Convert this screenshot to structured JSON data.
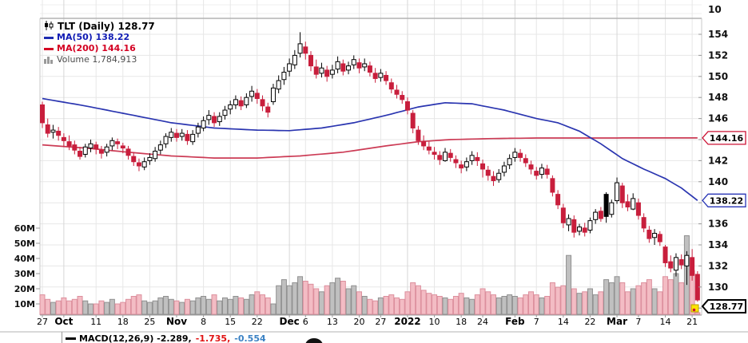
{
  "legend": {
    "symbol_title": "TLT (Daily) 128.77",
    "ma50_label": "MA(50) 138.22",
    "ma200_label": "MA(200) 144.16",
    "volume_label": "Volume 1,784,913"
  },
  "macd": {
    "label": "MACD(12,26,9) -2.289,",
    "value2": "-1.735,",
    "value3": "-0.554"
  },
  "colors": {
    "candle_down": "#c81e3c",
    "candle_up_border": "#000000",
    "ma50": "#2a35b0",
    "ma200": "#cc3b55",
    "vol_down_fill": "#f3bcc4",
    "vol_down_stroke": "#dc8f9d",
    "vol_up_fill": "#c0c0c0",
    "vol_up_stroke": "#909090",
    "grid": "#e7e7e7",
    "grid_month": "#d6d6d6",
    "divider": "#b3b3b3",
    "axis_text": "#111111",
    "callout_ma200": "#cc1133",
    "callout_ma50": "#2734b5",
    "callout_last": "#000000",
    "marker_fill": "#ffe400",
    "marker_stroke": "#b8a000",
    "marker_dot": "#cc1133"
  },
  "axes": {
    "top_label": "10",
    "price_tick_labels": [
      154,
      152,
      150,
      148,
      146,
      142,
      140,
      136,
      134,
      132,
      130
    ],
    "price_gridlines": [
      154,
      152,
      150,
      148,
      146,
      144,
      142,
      140,
      138,
      136,
      134,
      132,
      130,
      128
    ],
    "volume_ticks": [
      {
        "label": "60M",
        "v": 60
      },
      {
        "label": "50M",
        "v": 50
      },
      {
        "label": "40M",
        "v": 40
      },
      {
        "label": "30M",
        "v": 30
      },
      {
        "label": "20M",
        "v": 20
      },
      {
        "label": "10M",
        "v": 10
      }
    ]
  },
  "chart_data": {
    "type": "candlestick",
    "symbol": "TLT",
    "timeframe": "Daily",
    "last_price": 128.77,
    "ma50_value": 138.22,
    "ma200_value": 144.16,
    "volume_shown": "1,784,913",
    "macd_values": [
      -2.289,
      -1.735,
      -0.554
    ],
    "ylim": [
      128,
      155.5
    ],
    "volume_ylim_millions": [
      0,
      60
    ],
    "x_ticks": [
      {
        "i": 0,
        "label": "27"
      },
      {
        "i": 4,
        "label": "Oct",
        "bold": true
      },
      {
        "i": 10,
        "label": "11"
      },
      {
        "i": 15,
        "label": "18"
      },
      {
        "i": 20,
        "label": "25"
      },
      {
        "i": 25,
        "label": "Nov",
        "bold": true
      },
      {
        "i": 30,
        "label": "8"
      },
      {
        "i": 35,
        "label": "15"
      },
      {
        "i": 40,
        "label": "22"
      },
      {
        "i": 46,
        "label": "Dec",
        "bold": true
      },
      {
        "i": 49,
        "label": "6"
      },
      {
        "i": 54,
        "label": "13"
      },
      {
        "i": 59,
        "label": "20"
      },
      {
        "i": 63,
        "label": "27"
      },
      {
        "i": 68,
        "label": "2022",
        "bold": true
      },
      {
        "i": 73,
        "label": "10"
      },
      {
        "i": 78,
        "label": "18"
      },
      {
        "i": 82,
        "label": "24"
      },
      {
        "i": 88,
        "label": "Feb",
        "bold": true
      },
      {
        "i": 92,
        "label": "7"
      },
      {
        "i": 97,
        "label": "14"
      },
      {
        "i": 102,
        "label": "22"
      },
      {
        "i": 107,
        "label": "Mar",
        "bold": true
      },
      {
        "i": 111,
        "label": "7"
      },
      {
        "i": 116,
        "label": "14"
      },
      {
        "i": 121,
        "label": "21"
      }
    ],
    "callouts": [
      {
        "label": "144.16",
        "price": 144.16,
        "stroke": "#cc1133",
        "bold": false,
        "dy": 0
      },
      {
        "label": "138.22",
        "price": 138.22,
        "stroke": "#2734b5",
        "bold": false,
        "dy": 0
      },
      {
        "label": "128.77",
        "price": 128.77,
        "stroke": "#000000",
        "bold": true,
        "dy": 8
      }
    ],
    "ma50_keypoints": [
      [
        0,
        147.9
      ],
      [
        8,
        147.2
      ],
      [
        16,
        146.4
      ],
      [
        24,
        145.6
      ],
      [
        32,
        145.1
      ],
      [
        40,
        144.9
      ],
      [
        46,
        144.85
      ],
      [
        52,
        145.1
      ],
      [
        58,
        145.6
      ],
      [
        64,
        146.3
      ],
      [
        70,
        147.1
      ],
      [
        75,
        147.5
      ],
      [
        80,
        147.4
      ],
      [
        86,
        146.8
      ],
      [
        92,
        146.0
      ],
      [
        96,
        145.6
      ],
      [
        100,
        144.8
      ],
      [
        104,
        143.6
      ],
      [
        108,
        142.2
      ],
      [
        112,
        141.2
      ],
      [
        116,
        140.3
      ],
      [
        119,
        139.4
      ],
      [
        122,
        138.22
      ]
    ],
    "ma200_keypoints": [
      [
        0,
        143.5
      ],
      [
        8,
        143.2
      ],
      [
        16,
        142.8
      ],
      [
        24,
        142.45
      ],
      [
        32,
        142.25
      ],
      [
        40,
        142.25
      ],
      [
        48,
        142.45
      ],
      [
        56,
        142.8
      ],
      [
        64,
        143.4
      ],
      [
        70,
        143.8
      ],
      [
        76,
        144.0
      ],
      [
        84,
        144.1
      ],
      [
        92,
        144.15
      ],
      [
        122,
        144.16
      ]
    ],
    "candles_format": [
      "open",
      "high",
      "low",
      "close",
      "volume_millions"
    ],
    "candles": [
      [
        147.3,
        147.6,
        145.1,
        145.6,
        16
      ],
      [
        145.4,
        146.0,
        144.2,
        144.6,
        13
      ],
      [
        144.7,
        145.4,
        144.1,
        144.9,
        11
      ],
      [
        144.8,
        145.2,
        143.9,
        144.4,
        12
      ],
      [
        144.2,
        144.6,
        143.3,
        143.9,
        14
      ],
      [
        143.8,
        144.4,
        143.0,
        143.4,
        12
      ],
      [
        143.5,
        143.9,
        142.6,
        143.0,
        13
      ],
      [
        142.9,
        143.3,
        142.1,
        142.4,
        15
      ],
      [
        142.6,
        143.6,
        142.3,
        143.3,
        12
      ],
      [
        143.2,
        144.0,
        142.8,
        143.6,
        10
      ],
      [
        143.5,
        143.8,
        142.6,
        143.1,
        10
      ],
      [
        143.0,
        143.4,
        142.2,
        142.7,
        12
      ],
      [
        142.8,
        143.6,
        142.4,
        143.3,
        11
      ],
      [
        143.4,
        144.2,
        143.0,
        143.9,
        13
      ],
      [
        143.8,
        144.1,
        143.1,
        143.6,
        10
      ],
      [
        143.4,
        143.7,
        142.7,
        143.2,
        11
      ],
      [
        143.1,
        143.4,
        142.1,
        142.5,
        13
      ],
      [
        142.4,
        142.8,
        141.5,
        141.9,
        15
      ],
      [
        141.8,
        142.2,
        141.0,
        141.5,
        16
      ],
      [
        141.4,
        142.3,
        141.1,
        141.9,
        12
      ],
      [
        142.0,
        142.7,
        141.6,
        142.3,
        11
      ],
      [
        142.2,
        143.3,
        141.9,
        142.9,
        12
      ],
      [
        143.0,
        143.9,
        142.6,
        143.5,
        14
      ],
      [
        143.6,
        144.6,
        143.2,
        144.3,
        15
      ],
      [
        144.2,
        145.1,
        143.8,
        144.7,
        13
      ],
      [
        144.6,
        145.0,
        143.8,
        144.2,
        12
      ],
      [
        144.3,
        145.0,
        143.9,
        144.6,
        11
      ],
      [
        144.5,
        144.9,
        143.5,
        143.9,
        13
      ],
      [
        143.8,
        144.9,
        143.5,
        144.5,
        12
      ],
      [
        144.6,
        145.6,
        144.2,
        145.2,
        14
      ],
      [
        145.1,
        146.2,
        144.8,
        145.8,
        15
      ],
      [
        145.9,
        146.8,
        145.4,
        146.3,
        13
      ],
      [
        146.2,
        146.6,
        145.2,
        145.6,
        16
      ],
      [
        145.7,
        146.6,
        145.3,
        146.2,
        12
      ],
      [
        146.3,
        147.2,
        145.9,
        146.8,
        14
      ],
      [
        146.9,
        147.7,
        146.4,
        147.3,
        13
      ],
      [
        147.3,
        148.2,
        146.9,
        147.8,
        15
      ],
      [
        147.7,
        148.1,
        146.8,
        147.2,
        14
      ],
      [
        147.3,
        148.4,
        147.0,
        148.0,
        13
      ],
      [
        148.1,
        149.1,
        147.6,
        148.6,
        16
      ],
      [
        148.4,
        148.8,
        147.4,
        147.9,
        18
      ],
      [
        147.8,
        148.2,
        146.7,
        147.2,
        16
      ],
      [
        147.1,
        147.5,
        146.1,
        146.6,
        14
      ],
      [
        147.6,
        149.3,
        147.3,
        148.9,
        10
      ],
      [
        148.8,
        150.1,
        148.4,
        149.6,
        22
      ],
      [
        149.7,
        150.9,
        149.2,
        150.4,
        26
      ],
      [
        150.5,
        151.7,
        150.0,
        151.2,
        22
      ],
      [
        151.1,
        152.5,
        150.7,
        152.0,
        24
      ],
      [
        152.2,
        154.2,
        151.8,
        153.1,
        28
      ],
      [
        152.8,
        153.3,
        151.6,
        152.2,
        25
      ],
      [
        152.0,
        152.4,
        150.5,
        151.0,
        23
      ],
      [
        150.9,
        151.6,
        149.8,
        150.2,
        20
      ],
      [
        150.3,
        151.3,
        149.9,
        150.8,
        18
      ],
      [
        150.6,
        151.0,
        149.5,
        150.0,
        22
      ],
      [
        150.2,
        151.1,
        149.8,
        150.6,
        24
      ],
      [
        150.7,
        151.9,
        150.3,
        151.4,
        27
      ],
      [
        151.2,
        151.6,
        150.1,
        150.5,
        25
      ],
      [
        150.6,
        151.4,
        150.2,
        151.0,
        20
      ],
      [
        151.1,
        152.0,
        150.7,
        151.6,
        22
      ],
      [
        151.3,
        151.7,
        150.3,
        150.8,
        18
      ],
      [
        150.9,
        151.7,
        150.5,
        151.2,
        15
      ],
      [
        151.0,
        151.4,
        150.0,
        150.4,
        13
      ],
      [
        150.3,
        150.8,
        149.4,
        149.8,
        12
      ],
      [
        149.9,
        150.7,
        149.5,
        150.3,
        14
      ],
      [
        150.1,
        150.5,
        149.2,
        149.6,
        15
      ],
      [
        149.4,
        149.8,
        148.4,
        148.8,
        16
      ],
      [
        148.7,
        149.2,
        147.9,
        148.3,
        14
      ],
      [
        148.2,
        148.6,
        147.4,
        147.8,
        13
      ],
      [
        147.6,
        148.0,
        146.4,
        146.8,
        18
      ],
      [
        146.5,
        146.8,
        144.6,
        145.1,
        24
      ],
      [
        144.9,
        145.3,
        143.5,
        143.9,
        22
      ],
      [
        143.8,
        144.4,
        143.0,
        143.4,
        19
      ],
      [
        143.3,
        143.8,
        142.6,
        143.0,
        17
      ],
      [
        142.8,
        143.3,
        142.1,
        142.6,
        16
      ],
      [
        142.5,
        142.9,
        141.6,
        142.1,
        15
      ],
      [
        142.0,
        143.2,
        141.9,
        142.8,
        14
      ],
      [
        142.7,
        143.1,
        141.9,
        142.3,
        13
      ],
      [
        142.1,
        142.5,
        141.3,
        141.8,
        15
      ],
      [
        141.6,
        142.0,
        140.8,
        141.3,
        17
      ],
      [
        141.4,
        142.3,
        141.0,
        141.9,
        14
      ],
      [
        142.0,
        142.9,
        141.6,
        142.5,
        13
      ],
      [
        142.3,
        142.8,
        141.5,
        142.0,
        16
      ],
      [
        141.7,
        142.1,
        140.4,
        141.2,
        20
      ],
      [
        141.1,
        141.5,
        140.1,
        140.6,
        18
      ],
      [
        140.5,
        141.0,
        139.6,
        140.1,
        16
      ],
      [
        140.2,
        141.2,
        139.9,
        140.8,
        14
      ],
      [
        140.9,
        141.9,
        140.5,
        141.5,
        15
      ],
      [
        141.6,
        142.6,
        141.2,
        142.2,
        16
      ],
      [
        142.3,
        143.2,
        141.9,
        142.8,
        15
      ],
      [
        142.7,
        143.1,
        141.9,
        142.3,
        14
      ],
      [
        142.2,
        142.6,
        141.4,
        141.8,
        16
      ],
      [
        141.6,
        142.0,
        140.7,
        141.2,
        18
      ],
      [
        141.0,
        141.4,
        140.2,
        140.6,
        16
      ],
      [
        140.7,
        141.7,
        140.3,
        141.3,
        14
      ],
      [
        141.2,
        141.6,
        140.3,
        140.7,
        15
      ],
      [
        140.3,
        140.6,
        138.6,
        139.0,
        24
      ],
      [
        138.8,
        139.2,
        137.4,
        137.8,
        21
      ],
      [
        137.5,
        137.9,
        135.6,
        136.1,
        22
      ],
      [
        135.9,
        136.9,
        135.3,
        136.5,
        42
      ],
      [
        136.4,
        136.8,
        134.7,
        135.2,
        20
      ],
      [
        135.3,
        136.0,
        134.9,
        135.7,
        17
      ],
      [
        135.6,
        136.1,
        134.8,
        135.2,
        18
      ],
      [
        135.4,
        136.6,
        135.1,
        136.3,
        20
      ],
      [
        136.4,
        137.4,
        136.0,
        137.1,
        16
      ],
      [
        137.2,
        137.6,
        136.2,
        136.5,
        18
      ],
      [
        138.8,
        139.0,
        136.1,
        136.7,
        26
      ],
      [
        136.9,
        138.3,
        136.6,
        138.0,
        24
      ],
      [
        138.2,
        140.4,
        137.9,
        139.9,
        28
      ],
      [
        139.6,
        139.9,
        137.5,
        138.0,
        24
      ],
      [
        138.1,
        138.8,
        137.2,
        137.6,
        18
      ],
      [
        137.4,
        138.9,
        137.3,
        138.4,
        20
      ],
      [
        138.0,
        138.4,
        136.4,
        136.8,
        22
      ],
      [
        136.6,
        137.0,
        135.2,
        135.6,
        24
      ],
      [
        135.4,
        135.8,
        134.2,
        134.6,
        26
      ],
      [
        134.7,
        135.5,
        134.0,
        135.1,
        20
      ],
      [
        135.0,
        135.3,
        133.9,
        134.3,
        18
      ],
      [
        133.8,
        134.0,
        131.9,
        132.3,
        28
      ],
      [
        132.4,
        133.0,
        131.4,
        131.8,
        26
      ],
      [
        131.6,
        133.2,
        131.0,
        132.8,
        30
      ],
      [
        132.6,
        133.1,
        131.7,
        132.1,
        24
      ],
      [
        132.0,
        133.4,
        130.2,
        133.0,
        55
      ],
      [
        132.8,
        133.6,
        130.6,
        131.1,
        32
      ],
      [
        131.2,
        131.5,
        128.6,
        128.77,
        2
      ]
    ]
  }
}
